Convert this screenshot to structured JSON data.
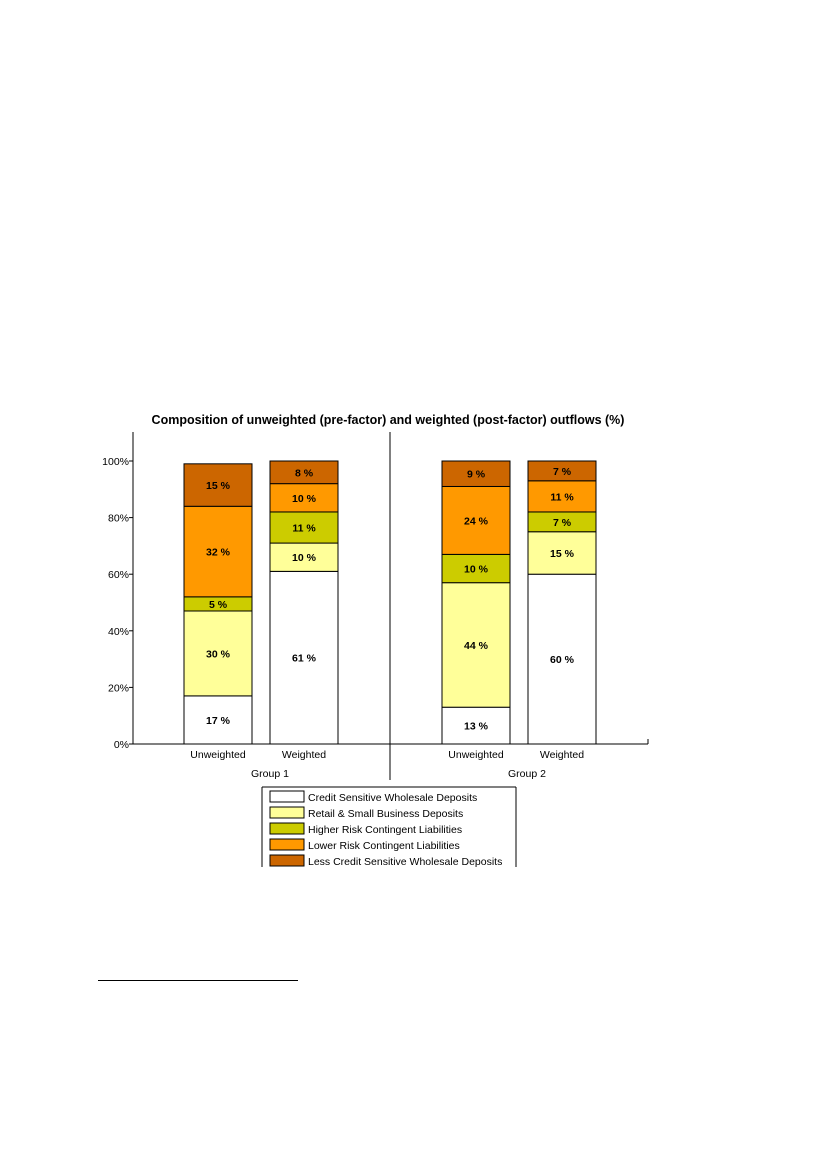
{
  "chart_data": {
    "type": "bar",
    "stacked": true,
    "title": "Composition of unweighted (pre-factor) and weighted (post-factor) outflows (%)",
    "xlabel": "",
    "ylabel": "",
    "ylim": [
      0,
      100
    ],
    "yticks": [
      "0%",
      "20%",
      "40%",
      "60%",
      "80%",
      "100%"
    ],
    "ytick_values": [
      0,
      20,
      40,
      60,
      80,
      100
    ],
    "groups": [
      "Group 1",
      "Group 2"
    ],
    "categories": [
      "Unweighted",
      "Weighted",
      "Unweighted",
      "Weighted"
    ],
    "category_groups": [
      0,
      0,
      1,
      1
    ],
    "series": [
      {
        "name": "Credit Sensitive Wholesale Deposits",
        "color": "#ffffff",
        "values": [
          17,
          61,
          13,
          60
        ],
        "labels": [
          "17 %",
          "61 %",
          "13 %",
          "60 %"
        ]
      },
      {
        "name": "Retail & Small Business Deposits",
        "color": "#ffff99",
        "values": [
          30,
          10,
          44,
          15
        ],
        "labels": [
          "30 %",
          "10 %",
          "44 %",
          "15 %"
        ]
      },
      {
        "name": "Higher Risk Contingent Liabilities",
        "color": "#cccc00",
        "values": [
          5,
          11,
          10,
          7
        ],
        "labels": [
          "5 %",
          "11 %",
          "10 %",
          "7 %"
        ]
      },
      {
        "name": "Lower Risk Contingent Liabilities",
        "color": "#ff9900",
        "values": [
          32,
          10,
          24,
          11
        ],
        "labels": [
          "32 %",
          "10 %",
          "24 %",
          "11 %"
        ]
      },
      {
        "name": "Less Credit Sensitive Wholesale Deposits",
        "color": "#cc6600",
        "values": [
          15,
          8,
          9,
          7
        ],
        "labels": [
          "15 %",
          "8 %",
          "9 %",
          "7 %"
        ]
      }
    ],
    "legend_position": "bottom",
    "grid": false
  }
}
